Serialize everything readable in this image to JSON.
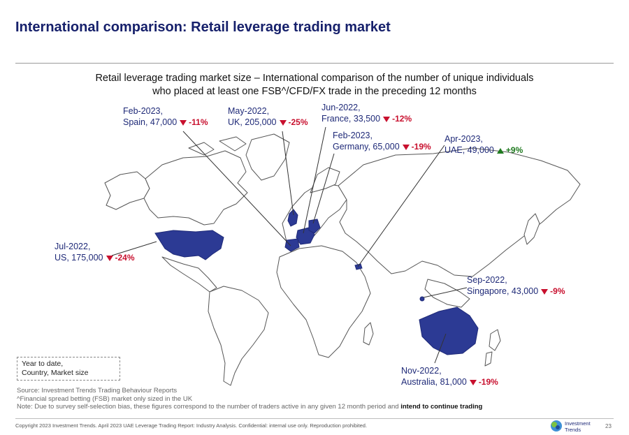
{
  "header": {
    "title": "International comparison: Retail leverage trading market",
    "subtitle_line1": "Retail leverage trading market size – International comparison of the number of unique individuals",
    "subtitle_line2": "who placed at least one FSB^/CFD/FX trade in the preceding 12 months"
  },
  "callouts": [
    {
      "key": "spain",
      "date": "Feb-2023,",
      "label": "Spain, 47,000",
      "change": "-11%",
      "direction": "down"
    },
    {
      "key": "uk",
      "date": "May-2022,",
      "label": "UK, 205,000",
      "change": "-25%",
      "direction": "down"
    },
    {
      "key": "france",
      "date": "Jun-2022,",
      "label": "France, 33,500",
      "change": "-12%",
      "direction": "down"
    },
    {
      "key": "germany",
      "date": "Feb-2023,",
      "label": "Germany, 65,000",
      "change": "-19%",
      "direction": "down"
    },
    {
      "key": "uae",
      "date": "Apr-2023,",
      "label": "UAE, 49,000",
      "change": "+9%",
      "direction": "up"
    },
    {
      "key": "us",
      "date": "Jul-2022,",
      "label": "US, 175,000",
      "change": "-24%",
      "direction": "down"
    },
    {
      "key": "singapore",
      "date": "Sep-2022,",
      "label": "Singapore, 43,000",
      "change": "-9%",
      "direction": "down"
    },
    {
      "key": "australia",
      "date": "Nov-2022,",
      "label": "Australia, 81,000",
      "change": "-19%",
      "direction": "down"
    }
  ],
  "legend": {
    "line1": "Year to date,",
    "line2": "Country, Market size"
  },
  "notes": {
    "source": "Source: Investment Trends Trading Behaviour Reports",
    "fsb": "^Financial spread betting (FSB) market only sized in the UK",
    "selection": "Note: Due to survey self-selection bias, these figures correspond to the number of traders active in any given 12 month period and",
    "selection_bold": "intend to continue trading"
  },
  "footer": {
    "copyright": "Copyright 2023 Investment Trends. April 2023 UAE Leverage Trading Report: Industry Analysis. Confidential: internal use only. Reproduction prohibited.",
    "logo_line1": "Investment",
    "logo_line2": "Trends",
    "page": "23"
  },
  "colors": {
    "title": "#16206b",
    "highlight": "#2c3a94",
    "down": "#c8102e",
    "up": "#1f7a1f",
    "land_outline": "#555555"
  }
}
